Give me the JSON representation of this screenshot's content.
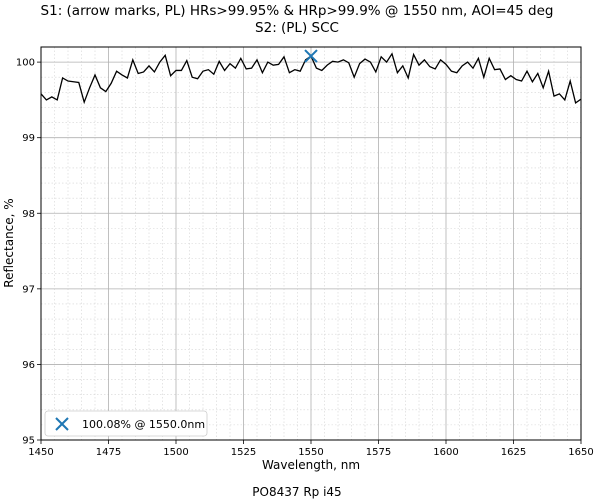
{
  "chart_data": {
    "type": "line",
    "title": [
      "S1: (arrow marks, PL) HRs>99.95% & HRp>99.9% @ 1550 nm, AOI=45 deg",
      "S2: (PL) SCC"
    ],
    "xlabel": "Wavelength, nm",
    "ylabel": "Reflectance, %",
    "footer": "PO8437 Rp i45",
    "xlim": [
      1450,
      1650
    ],
    "ylim": [
      95,
      100.2
    ],
    "x_ticks": [
      "1450",
      "1475",
      "1500",
      "1525",
      "1550",
      "1575",
      "1600",
      "1625",
      "1650"
    ],
    "y_ticks": [
      "95",
      "96",
      "97",
      "98",
      "99",
      "100"
    ],
    "grid": true,
    "minor_grid": true,
    "line_color": "#000000",
    "marker_color": "#1f77b4",
    "series": [
      {
        "x": [
          1450,
          1452,
          1454,
          1456,
          1458,
          1460,
          1462,
          1464,
          1466,
          1468,
          1470,
          1472,
          1474,
          1476,
          1478,
          1480,
          1482,
          1484,
          1486,
          1488,
          1490,
          1492,
          1494,
          1496,
          1498,
          1500,
          1502,
          1504,
          1506,
          1508,
          1510,
          1512,
          1514,
          1516,
          1518,
          1520,
          1522,
          1524,
          1526,
          1528,
          1530,
          1532,
          1534,
          1536,
          1538,
          1540,
          1542,
          1544,
          1546,
          1548,
          1550,
          1552,
          1554,
          1556,
          1558,
          1560,
          1562,
          1564,
          1566,
          1568,
          1570,
          1572,
          1574,
          1576,
          1578,
          1580,
          1582,
          1584,
          1586,
          1588,
          1590,
          1592,
          1594,
          1596,
          1598,
          1600,
          1602,
          1604,
          1606,
          1608,
          1610,
          1612,
          1614,
          1616,
          1618,
          1620,
          1622,
          1624,
          1626,
          1628,
          1630,
          1632,
          1634,
          1636,
          1638,
          1640,
          1642,
          1644,
          1646,
          1648,
          1650
        ],
        "values": [
          99.58,
          99.5,
          99.54,
          99.5,
          99.79,
          99.75,
          99.74,
          99.73,
          99.47,
          99.66,
          99.83,
          99.66,
          99.61,
          99.72,
          99.88,
          99.83,
          99.79,
          100.03,
          99.85,
          99.87,
          99.95,
          99.87,
          100.0,
          100.09,
          99.82,
          99.89,
          99.89,
          100.02,
          99.8,
          99.78,
          99.88,
          99.9,
          99.84,
          100.01,
          99.89,
          99.98,
          99.92,
          100.05,
          99.91,
          99.92,
          100.03,
          99.86,
          100.0,
          99.96,
          99.97,
          100.07,
          99.86,
          99.9,
          99.88,
          100.03,
          100.08,
          99.92,
          99.89,
          99.96,
          100.01,
          100.0,
          100.03,
          99.99,
          99.8,
          99.98,
          100.04,
          100.0,
          99.87,
          100.07,
          100.0,
          100.11,
          99.86,
          99.95,
          99.79,
          100.1,
          99.96,
          100.03,
          99.94,
          99.91,
          100.03,
          99.97,
          99.88,
          99.86,
          99.95,
          100.0,
          99.92,
          100.05,
          99.8,
          100.05,
          99.9,
          99.91,
          99.77,
          99.82,
          99.77,
          99.75,
          99.88,
          99.74,
          99.85,
          99.66,
          99.88,
          99.55,
          99.58,
          99.5,
          99.75,
          99.46,
          99.51
        ]
      }
    ],
    "marker": {
      "x": 1550,
      "y": 100.08,
      "label": "100.08% @ 1550.0nm"
    },
    "legend": "lower-left"
  }
}
